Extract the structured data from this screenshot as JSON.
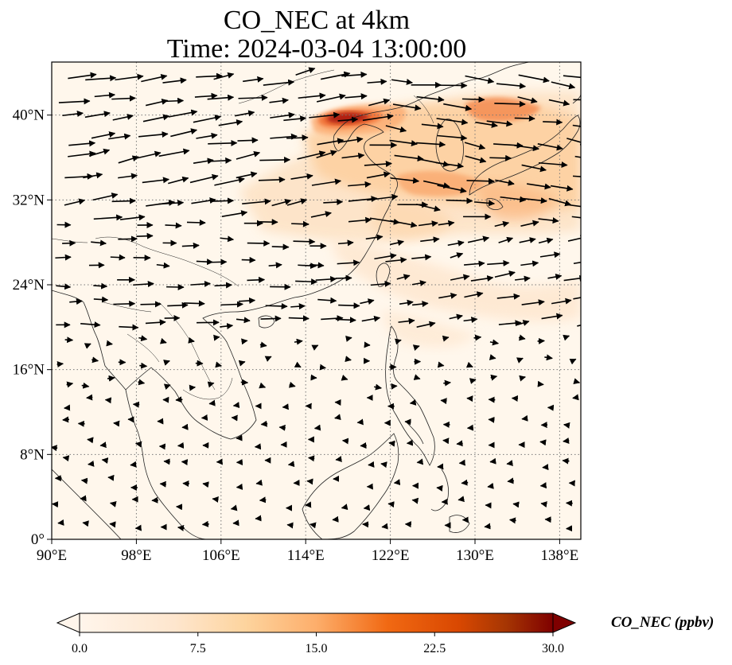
{
  "title": "CO_NEC at 4km",
  "subtitle": "Time: 2024-03-04 13:00:00",
  "map": {
    "lon_range": [
      90,
      140
    ],
    "lat_range": [
      0,
      45
    ],
    "lon_ticks": [
      "90°E",
      "98°E",
      "106°E",
      "114°E",
      "122°E",
      "130°E",
      "138°E"
    ],
    "lon_tick_values": [
      90,
      98,
      106,
      114,
      122,
      130,
      138
    ],
    "lat_ticks": [
      "0°",
      "8°N",
      "16°N",
      "24°N",
      "32°N",
      "40°N"
    ],
    "lat_tick_values": [
      0,
      8,
      16,
      24,
      32,
      40
    ],
    "grid": "dotted",
    "field_variable": "CO_NEC",
    "vectors": "wind arrows"
  },
  "colorbar": {
    "label": "CO_NEC (ppbv)",
    "ticks": [
      "0.0",
      "7.5",
      "15.0",
      "22.5",
      "30.0"
    ],
    "tick_values": [
      0,
      7.5,
      15,
      22.5,
      30
    ],
    "range": [
      0,
      30
    ],
    "extend": "both",
    "colormap": [
      "#fff5eb",
      "#fdd49e",
      "#fdae6b",
      "#f16913",
      "#d94801",
      "#8c2d04",
      "#7f0000"
    ]
  }
}
